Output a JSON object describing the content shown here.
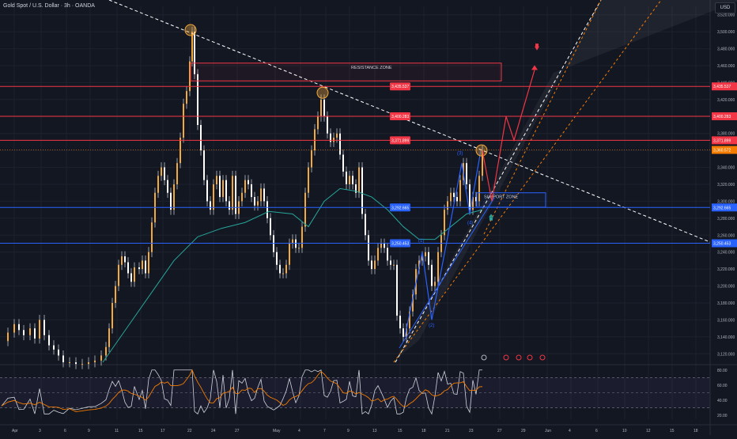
{
  "title": "Gold Spot / U.S. Dollar · 3h · OANDA",
  "currency": "USD",
  "price_axis": {
    "ticks": [
      "3,520.000",
      "3,500.000",
      "3,480.000",
      "3,460.000",
      "3,440.000",
      "3,420.000",
      "3,400.000",
      "3,380.000",
      "3,360.000",
      "3,340.000",
      "3,320.000",
      "3,300.000",
      "3,280.000",
      "3,260.000",
      "3,240.000",
      "3,220.000",
      "3,200.000",
      "3,180.000",
      "3,160.000",
      "3,140.000",
      "3,120.000"
    ],
    "range": [
      3110,
      3530
    ]
  },
  "rsi_axis": {
    "ticks": [
      "80.00",
      "60.00",
      "40.00",
      "20.00"
    ]
  },
  "time_axis": {
    "labels": [
      "Apr",
      "3",
      "6",
      "9",
      "11",
      "15",
      "17",
      "22",
      "24",
      "27",
      "May",
      "4",
      "7",
      "9",
      "13",
      "15",
      "18",
      "21",
      "23",
      "27",
      "29",
      "Jun",
      "4",
      "6",
      "10",
      "12",
      "15",
      "18"
    ]
  },
  "levels": [
    {
      "label": "3,435.537",
      "price": 3435.537,
      "color": "#f23645"
    },
    {
      "label": "3,400.283",
      "price": 3400.283,
      "color": "#f23645"
    },
    {
      "label": "3,371.899",
      "price": 3371.899,
      "color": "#f23645"
    },
    {
      "label": "3,292.665",
      "price": 3292.665,
      "color": "#2962ff"
    },
    {
      "label": "3,250.453",
      "price": 3250.453,
      "color": "#2962ff"
    }
  ],
  "current_price": {
    "label": "3,360.572",
    "color": "#f57c00"
  },
  "zones": {
    "resistance": "RESISTANCE ZONE",
    "support": "SUPPORT ZONE"
  },
  "waves": [
    "(1)",
    "(2)",
    "(3)",
    "(4)"
  ],
  "rsi": {
    "value_label": "",
    "ma_color": "#f57c00",
    "line_color": "#d1d4dc"
  },
  "colors": {
    "background": "#131722",
    "grid": "#1e222d",
    "candle_up": "#f4a93b",
    "candle_down": "#f4a93b",
    "resistance": "#f23645",
    "support": "#2962ff",
    "ma": "#26a69a"
  }
}
